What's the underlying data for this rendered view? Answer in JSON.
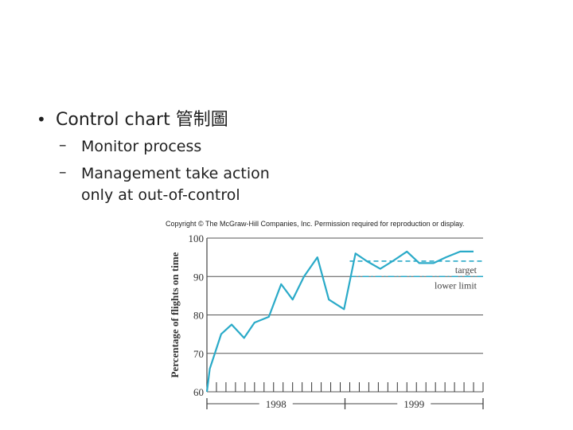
{
  "slide": {
    "bullet_marker": "•",
    "dash_marker": "–",
    "main_bullet": "Control chart 管制圖",
    "sub_bullets": [
      [
        "Monitor process"
      ],
      [
        "Management take action",
        "only at out-of-control"
      ]
    ]
  },
  "chart_data": {
    "type": "line",
    "copyright": "Copyright © The McGraw-Hill Companies, Inc. Permission required for reproduction or display.",
    "ylabel": "Percentage of flights on time",
    "ylim": [
      60,
      100
    ],
    "y_ticks": [
      60,
      70,
      80,
      90,
      100
    ],
    "grid": true,
    "x_ticks_count": 30,
    "year_labels": [
      "1998",
      "1999"
    ],
    "series": [
      {
        "color": "#2aaac8",
        "x": [
          0,
          0.3,
          1.5,
          2.6,
          3.9,
          5.0,
          6.5,
          7.8,
          9.0,
          10.2,
          11.6,
          12.8,
          14.4,
          15.6,
          16.8,
          18.2,
          19.5,
          21.0,
          22.3,
          23.8,
          25.1,
          26.6,
          28.0
        ],
        "values": [
          60,
          66,
          75,
          77.5,
          74,
          78,
          79.5,
          88,
          84,
          90,
          95,
          84,
          81.5,
          96,
          94,
          92,
          94,
          96.5,
          93.5,
          93.5,
          95,
          96.5,
          96.5
        ]
      }
    ],
    "target": {
      "label": "target",
      "value": 94,
      "from_x": 15,
      "to_x": 29,
      "color": "#2aaac8"
    },
    "lower_limit": {
      "label": "lower limit",
      "value": 90,
      "from_x": 15,
      "to_x": 29,
      "color": "#2aaac8"
    }
  }
}
